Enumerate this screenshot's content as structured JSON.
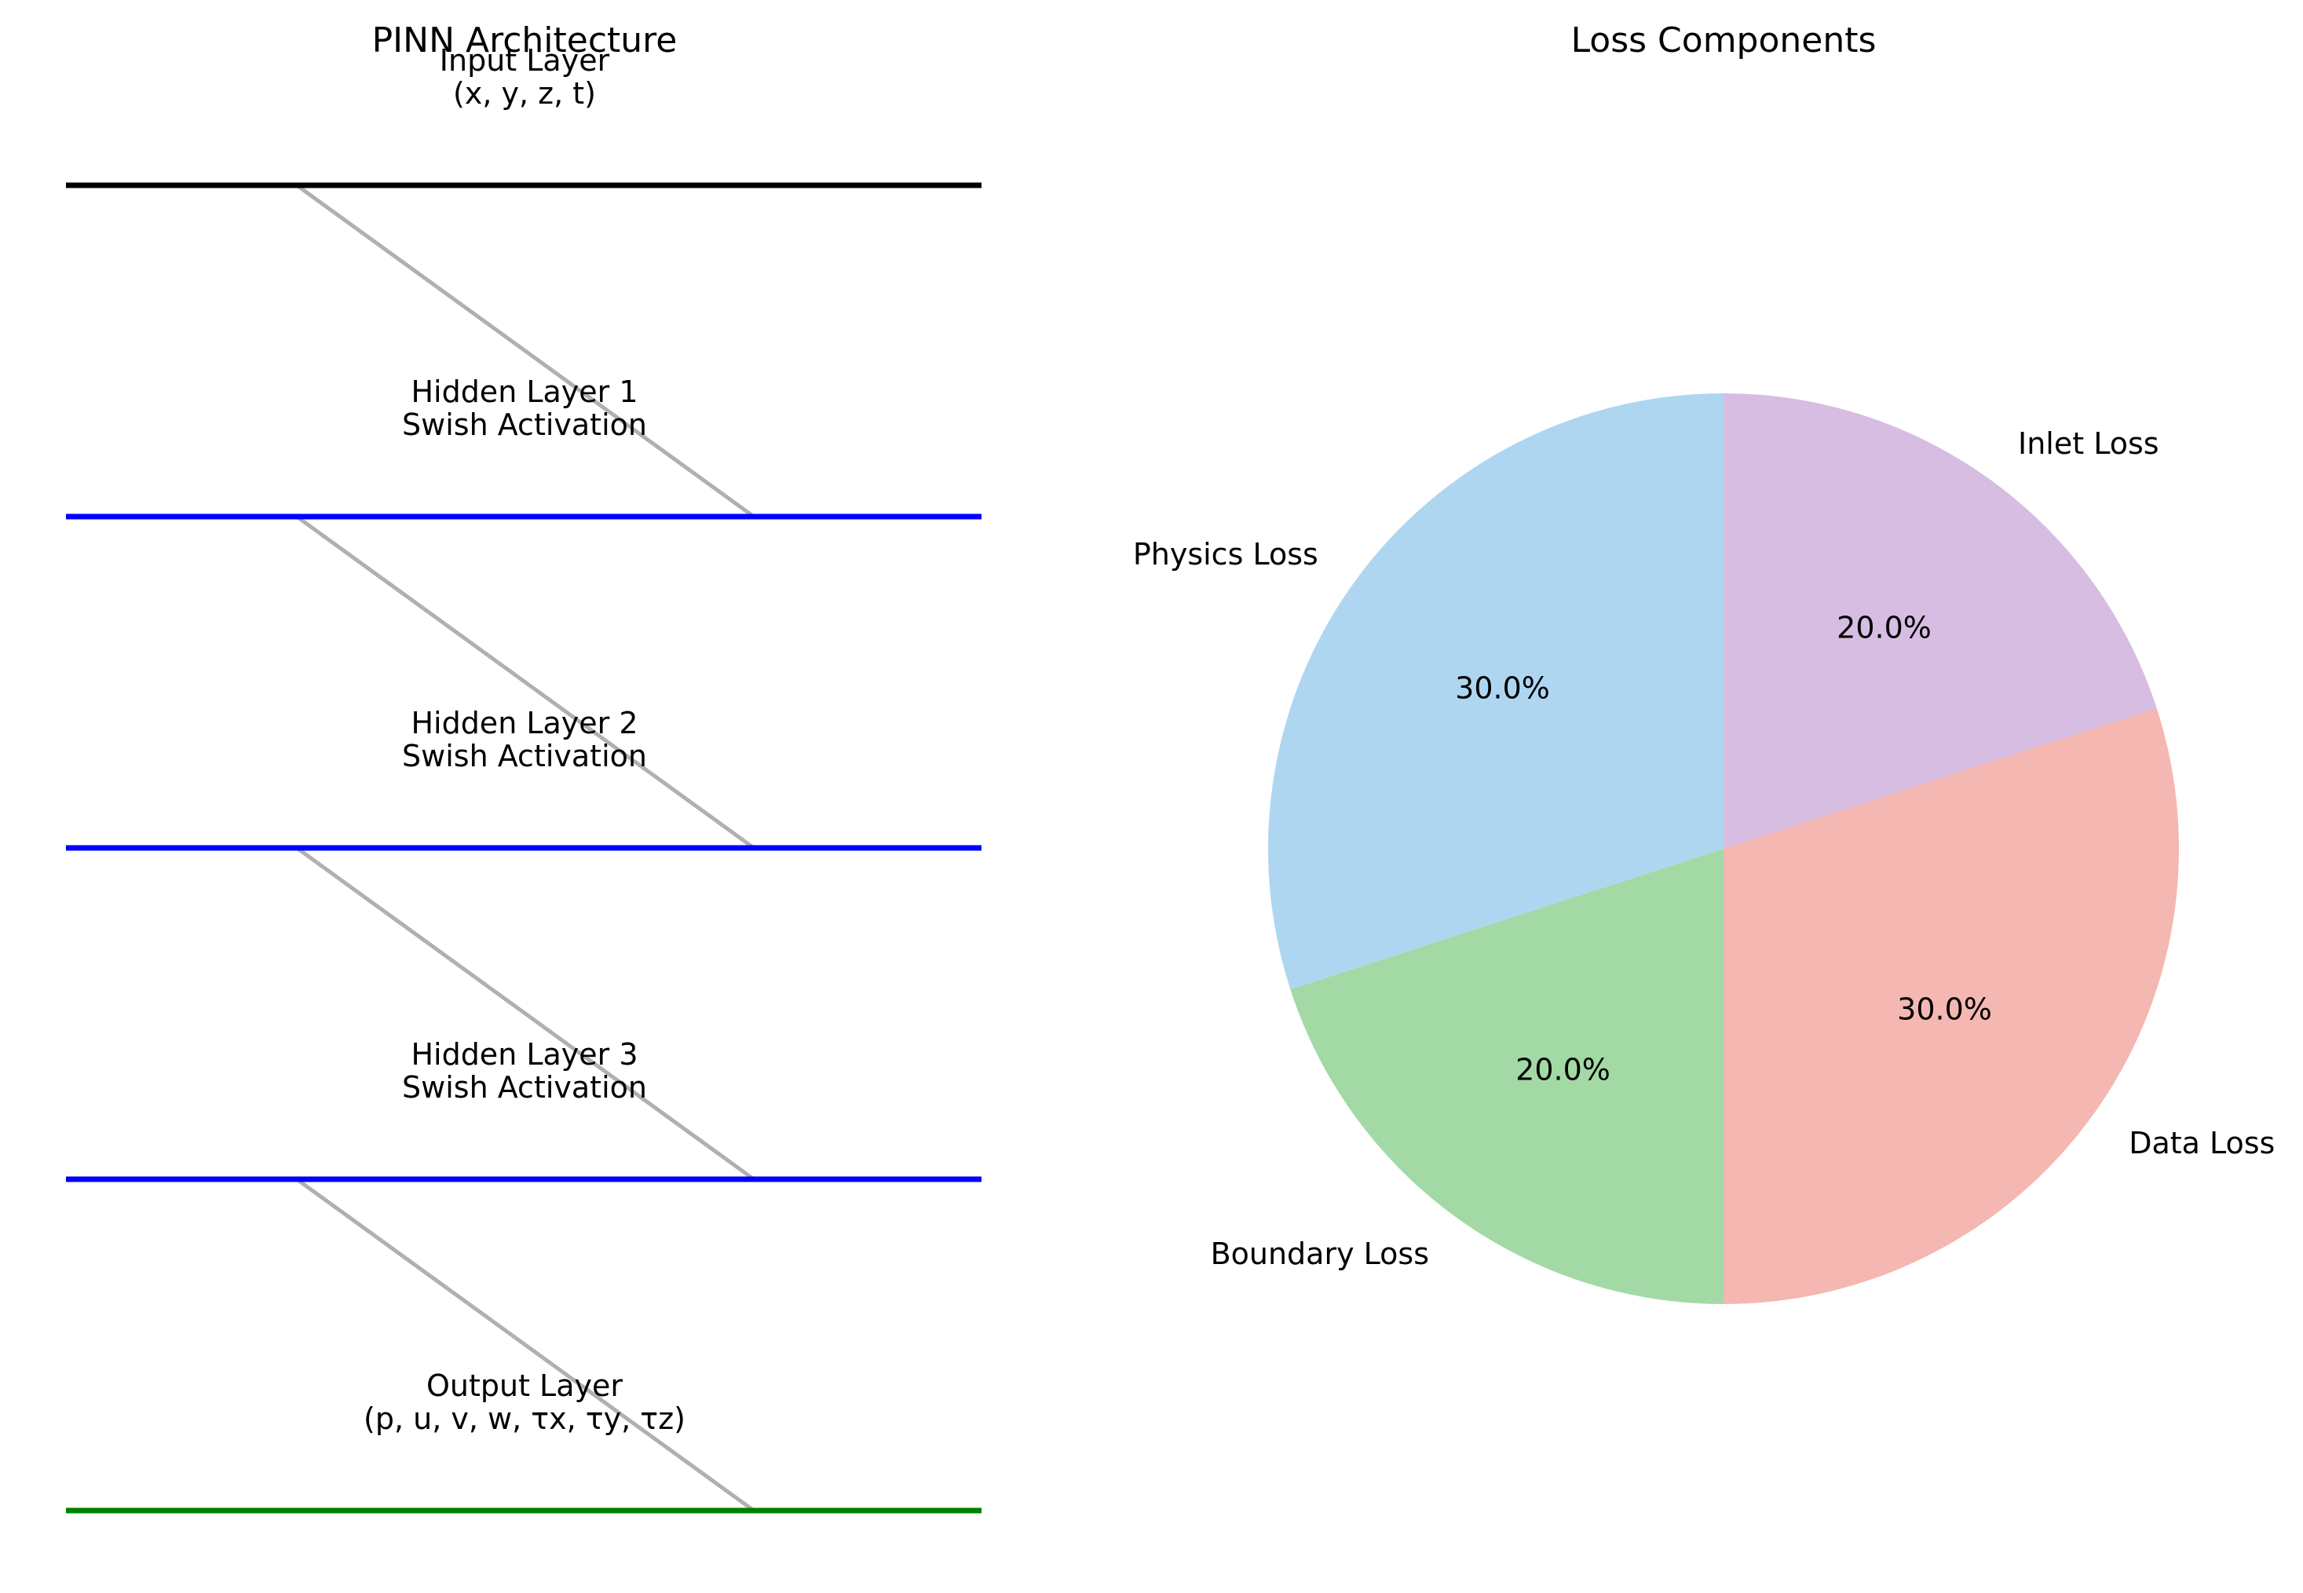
{
  "architecture": {
    "title": "PINN Architecture",
    "layers": [
      {
        "name": "Input Layer",
        "detail": "(x, y, z, t)",
        "color": "#000000"
      },
      {
        "name": "Hidden Layer 1",
        "detail": "Swish Activation",
        "color": "#0000ff"
      },
      {
        "name": "Hidden Layer 2",
        "detail": "Swish Activation",
        "color": "#0000ff"
      },
      {
        "name": "Hidden Layer 3",
        "detail": "Swish Activation",
        "color": "#0000ff"
      },
      {
        "name": "Output Layer",
        "detail": "(p, u, v, w, τx, τy, τz)",
        "color": "#008000"
      }
    ],
    "connection_color": "#b0b0b0"
  },
  "chart_data": {
    "type": "pie",
    "title": "Loss Components",
    "categories": [
      "Physics Loss",
      "Boundary Loss",
      "Data Loss",
      "Inlet Loss"
    ],
    "values": [
      30,
      20,
      30,
      20
    ],
    "value_labels": [
      "30.0%",
      "20.0%",
      "30.0%",
      "20.0%"
    ],
    "colors": [
      "#aed6f1",
      "#a3d9a5",
      "#f5b7b1",
      "#d7bde2"
    ],
    "start_angle_deg": 90,
    "direction": "counterclockwise"
  }
}
